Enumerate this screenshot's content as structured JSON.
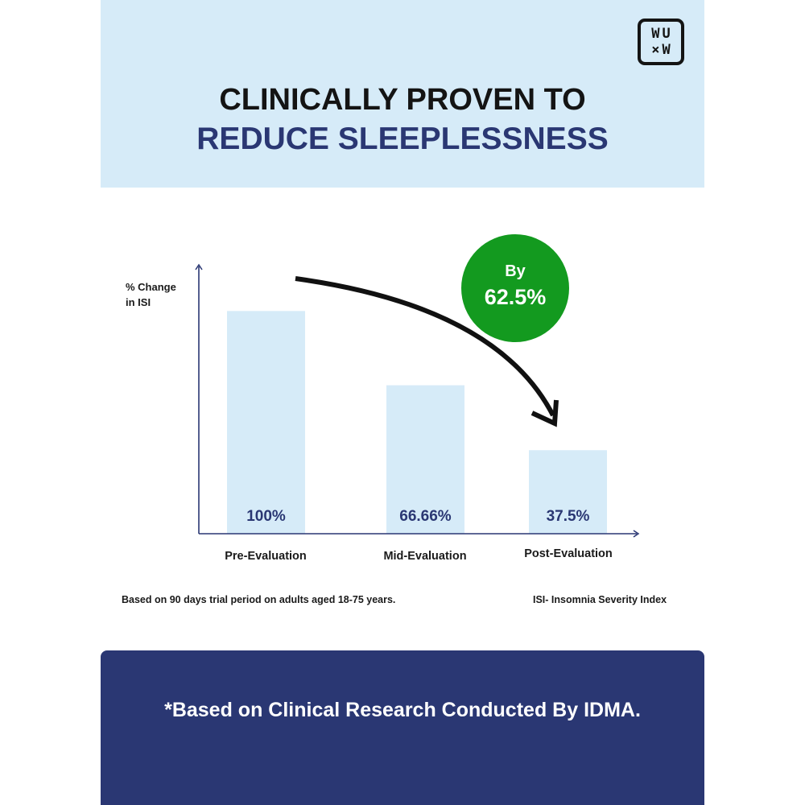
{
  "brand": {
    "logo_top": "WU",
    "logo_bottom": "×W"
  },
  "header": {
    "line1": "CLINICALLY PROVEN TO",
    "line2": "REDUCE SLEEPLESSNESS"
  },
  "colors": {
    "header_bg": "#d6ebf8",
    "bar_fill": "#d6ebf8",
    "brand_navy": "#2a3773",
    "badge_green": "#139a1f",
    "axis": "#2a3773",
    "text_dark": "#141414"
  },
  "badge": {
    "line1": "By",
    "line2": "62.5%"
  },
  "chart_data": {
    "type": "bar",
    "title": "",
    "ylabel_lines": [
      "% Change",
      "in ISI"
    ],
    "xlabel": "",
    "categories": [
      "Pre-Evaluation",
      "Mid-Evaluation",
      "Post-Evaluation"
    ],
    "values": [
      100,
      66.66,
      37.5
    ],
    "data_labels": [
      "100%",
      "66.66%",
      "37.5%"
    ],
    "ylim": [
      0,
      120
    ],
    "grid": false,
    "legend": "none",
    "annotation": "downward curved arrow from Pre-Evaluation to Post-Evaluation"
  },
  "notes": {
    "left": "Based on 90 days trial period on adults aged 18-75 years.",
    "right": "ISI- Insomnia Severity Index"
  },
  "footer": {
    "text": "*Based on Clinical Research Conducted By IDMA."
  }
}
